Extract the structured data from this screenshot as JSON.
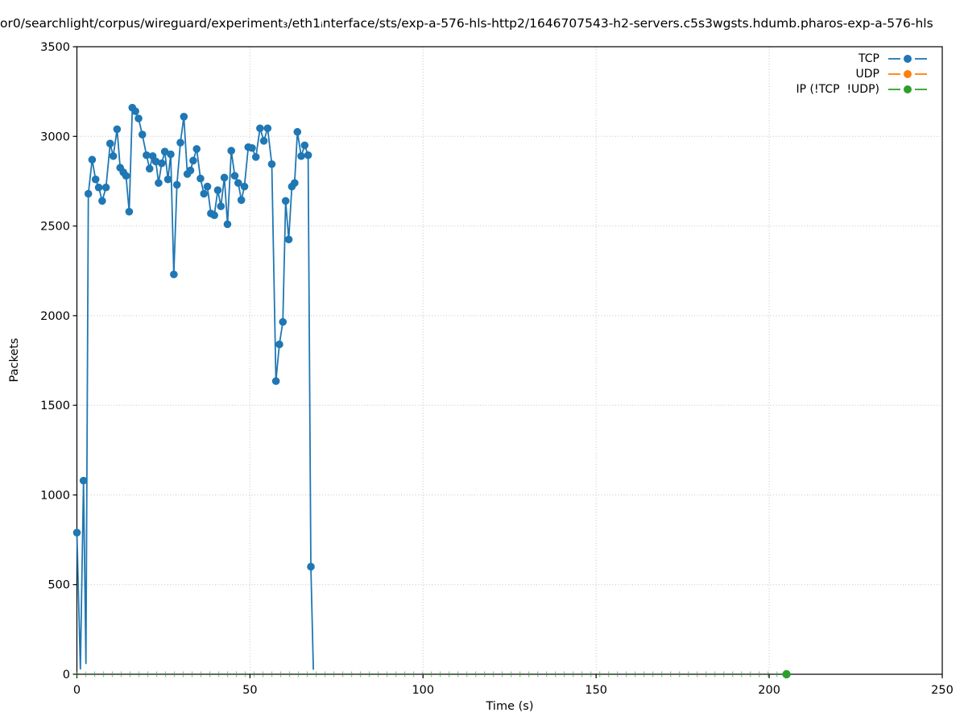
{
  "title": "or0/searchlight/corpus/wireguard/experiment₃/eth1ᵢnterface/sts/exp-a-576-hls-http2/1646707543-h2-servers.c5s3wgsts.hdumb.pharos-exp-a-576-hls",
  "chart_data": {
    "type": "line",
    "title": "or0/searchlight/corpus/wireguard/experiment₃/eth1ᵢnterface/sts/exp-a-576-hls-http2/1646707543-h2-servers.c5s3wgsts.hdumb.pharos-exp-a-576-hls",
    "xlabel": "Time (s)",
    "ylabel": "Packets",
    "xlim": [
      0,
      250
    ],
    "ylim": [
      0,
      3500
    ],
    "xticks": [
      0,
      50,
      100,
      150,
      200,
      250
    ],
    "yticks": [
      0,
      500,
      1000,
      1500,
      2000,
      2500,
      3000,
      3500
    ],
    "grid": true,
    "grid_style": "dotted",
    "legend_position": "upper right",
    "series": [
      {
        "name": "TCP",
        "color": "#1f77b4",
        "marker": "circle",
        "points": [
          [
            0.0,
            790
          ],
          [
            1.0,
            30,
            0
          ],
          [
            1.9,
            1080
          ],
          [
            2.6,
            60,
            0
          ],
          [
            3.3,
            2680
          ],
          [
            4.4,
            2870
          ],
          [
            5.4,
            2760
          ],
          [
            6.3,
            2715
          ],
          [
            7.3,
            2640
          ],
          [
            8.4,
            2715
          ],
          [
            9.6,
            2960
          ],
          [
            10.5,
            2890
          ],
          [
            11.6,
            3040
          ],
          [
            12.5,
            2825
          ],
          [
            13.4,
            2800
          ],
          [
            14.2,
            2780
          ],
          [
            15.1,
            2580
          ],
          [
            16.0,
            3160
          ],
          [
            16.9,
            3140
          ],
          [
            17.8,
            3100
          ],
          [
            18.9,
            3010
          ],
          [
            20.1,
            2895
          ],
          [
            21.0,
            2820
          ],
          [
            21.9,
            2890
          ],
          [
            22.8,
            2860
          ],
          [
            23.6,
            2740
          ],
          [
            24.5,
            2850
          ],
          [
            25.4,
            2915
          ],
          [
            26.3,
            2760
          ],
          [
            27.1,
            2900
          ],
          [
            28.0,
            2230
          ],
          [
            28.9,
            2730
          ],
          [
            29.9,
            2965
          ],
          [
            30.9,
            3110
          ],
          [
            31.9,
            2790
          ],
          [
            32.8,
            2810
          ],
          [
            33.6,
            2865
          ],
          [
            34.6,
            2930
          ],
          [
            35.7,
            2765
          ],
          [
            36.7,
            2680
          ],
          [
            37.7,
            2720
          ],
          [
            38.7,
            2570
          ],
          [
            39.7,
            2560
          ],
          [
            40.7,
            2700
          ],
          [
            41.6,
            2610
          ],
          [
            42.6,
            2770
          ],
          [
            43.5,
            2510
          ],
          [
            44.6,
            2920
          ],
          [
            45.6,
            2780
          ],
          [
            46.6,
            2740
          ],
          [
            47.5,
            2645
          ],
          [
            48.4,
            2720
          ],
          [
            49.5,
            2940
          ],
          [
            50.6,
            2935
          ],
          [
            51.7,
            2885
          ],
          [
            52.9,
            3045
          ],
          [
            54.0,
            2975
          ],
          [
            55.1,
            3045
          ],
          [
            56.3,
            2845
          ],
          [
            57.5,
            1635
          ],
          [
            58.5,
            1840
          ],
          [
            59.5,
            1965
          ],
          [
            60.3,
            2640
          ],
          [
            61.2,
            2425
          ],
          [
            62.1,
            2720
          ],
          [
            62.9,
            2740
          ],
          [
            63.7,
            3025
          ],
          [
            64.8,
            2890
          ],
          [
            65.8,
            2950
          ],
          [
            66.8,
            2895
          ],
          [
            67.6,
            600
          ],
          [
            68.3,
            25,
            0
          ]
        ]
      },
      {
        "name": "UDP",
        "color": "#ff7f0e",
        "marker": "circle",
        "points": []
      },
      {
        "name": "IP (!TCP  !UDP)",
        "color": "#2ca02c",
        "marker": "tick",
        "zero_run": {
          "y": 0,
          "x_start": 0,
          "x_end": 202.5,
          "interval": 2.56
        },
        "final_point": [
          205,
          0
        ]
      }
    ]
  }
}
